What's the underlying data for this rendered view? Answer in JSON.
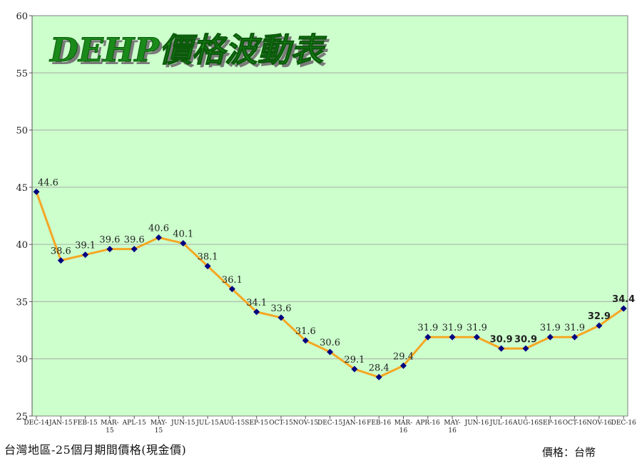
{
  "chart_data": {
    "type": "line",
    "title": "DEHP價格波動表",
    "categories": [
      "DEC-14",
      "JAN-15",
      "FEB-15",
      "MAR-15",
      "APL-15",
      "MAY-15",
      "JUN-15",
      "JUL-15",
      "AUG-15",
      "SEP-15",
      "OCT-15",
      "NOV-15",
      "DEC-15",
      "JAN-16",
      "FEB-16",
      "MAR-16",
      "APR-16",
      "MAY-16",
      "JUN-16",
      "JUL-16",
      "AUG-16",
      "SEP-16",
      "OCT-16",
      "NOV-16",
      "DEC-16"
    ],
    "series": [
      {
        "values": [
          44.6,
          38.6,
          39.1,
          39.6,
          39.6,
          40.6,
          40.1,
          38.1,
          36.1,
          34.1,
          33.6,
          31.6,
          30.6,
          29.1,
          28.4,
          29.4,
          31.9,
          31.9,
          31.9,
          30.9,
          30.9,
          31.9,
          31.9,
          32.9,
          34.4
        ]
      }
    ],
    "data_labels": [
      "44.6",
      "38.6",
      "39.1",
      "39.6",
      "39.6",
      "40.6",
      "40.1",
      "38.1",
      "36.1",
      "34.1",
      "33.6",
      "31.6",
      "30.6",
      "29.1",
      "28.4",
      "29.4",
      "31.9",
      "31.9",
      "31.9",
      "30.9",
      "30.9",
      "31.9",
      "31.9",
      "32.9",
      "34.4"
    ],
    "bold_labels": [
      "30.9",
      "30.9",
      "32.9",
      "34.4"
    ],
    "ylim": [
      25,
      60
    ],
    "yticks": [
      "25",
      "30",
      "35",
      "40",
      "45",
      "50",
      "55",
      "60"
    ],
    "grid": true,
    "colors": {
      "plot_bg": "#ccffcc",
      "line": "#f5a623",
      "marker": "#000080",
      "grid": "#aaaaaa",
      "title": "#1a8a1a",
      "title_shadow": "#7a7a7a"
    }
  },
  "footer": {
    "note": "台灣地區-25個月期間價格(現金價)",
    "unit": "價格：台幣"
  }
}
